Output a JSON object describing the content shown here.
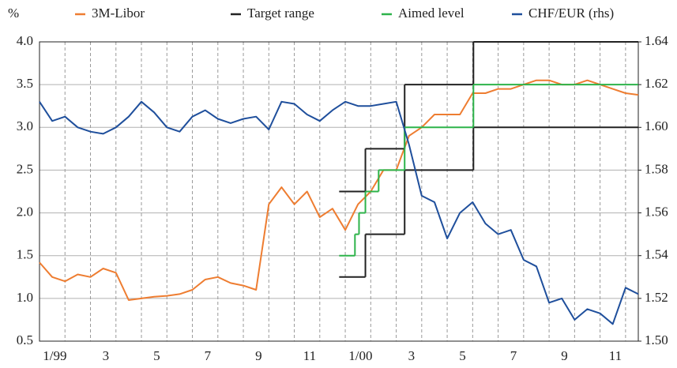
{
  "chart_data": {
    "type": "line",
    "ylabel": "%",
    "xlim": [
      0,
      23.5
    ],
    "xticks": [
      {
        "value": 0,
        "label": "1/99"
      },
      {
        "value": 2,
        "label": "3"
      },
      {
        "value": 4,
        "label": "5"
      },
      {
        "value": 6,
        "label": "7"
      },
      {
        "value": 8,
        "label": "9"
      },
      {
        "value": 10,
        "label": "11"
      },
      {
        "value": 12,
        "label": "1/00"
      },
      {
        "value": 14,
        "label": "3"
      },
      {
        "value": 16,
        "label": "5"
      },
      {
        "value": 18,
        "label": "7"
      },
      {
        "value": 20,
        "label": "9"
      },
      {
        "value": 22,
        "label": "11"
      }
    ],
    "ylim": [
      0.5,
      4.0
    ],
    "yticks": [
      {
        "value": 0.5,
        "label": "0.5"
      },
      {
        "value": 1,
        "label": "1.0"
      },
      {
        "value": 1.5,
        "label": "1.5"
      },
      {
        "value": 2,
        "label": "2.0"
      },
      {
        "value": 2.5,
        "label": "2.5"
      },
      {
        "value": 3,
        "label": "3.0"
      },
      {
        "value": 3.5,
        "label": "3.5"
      },
      {
        "value": 4,
        "label": "4.0"
      }
    ],
    "y2lim": [
      1.5,
      1.64
    ],
    "y2ticks": [
      {
        "value": 1.5,
        "label": "1.50"
      },
      {
        "value": 1.52,
        "label": "1.52"
      },
      {
        "value": 1.54,
        "label": "1.54"
      },
      {
        "value": 1.56,
        "label": "1.56"
      },
      {
        "value": 1.58,
        "label": "1.58"
      },
      {
        "value": 1.6,
        "label": "1.60"
      },
      {
        "value": 1.62,
        "label": "1.62"
      },
      {
        "value": 1.64,
        "label": "1.64"
      }
    ],
    "grid": true,
    "legend": "top",
    "x": [
      0,
      0.5,
      1,
      1.5,
      2,
      2.5,
      3,
      3.5,
      4,
      4.5,
      5,
      5.5,
      6,
      6.5,
      7,
      7.5,
      8,
      8.5,
      9,
      9.5,
      10,
      10.5,
      11,
      11.5,
      12,
      12.5,
      13,
      13.5,
      14,
      14.5,
      15,
      15.5,
      16,
      16.5,
      17,
      17.5,
      18,
      18.5,
      19,
      19.5,
      20,
      20.5,
      21,
      21.5,
      22,
      22.5,
      23,
      23.5
    ],
    "series": [
      {
        "name": "3M-Libor",
        "color": "#ee7d31",
        "values": [
          1.42,
          1.25,
          1.2,
          1.28,
          1.25,
          1.35,
          1.3,
          0.98,
          1.0,
          1.02,
          1.03,
          1.05,
          1.1,
          1.22,
          1.25,
          1.18,
          1.15,
          1.1,
          2.1,
          2.3,
          2.1,
          2.25,
          1.95,
          2.05,
          1.8,
          2.1,
          2.25,
          2.5,
          2.5,
          2.9,
          3.0,
          3.15,
          3.15,
          3.15,
          3.4,
          3.4,
          3.45,
          3.45,
          3.5,
          3.55,
          3.55,
          3.5,
          3.5,
          3.55,
          3.5,
          3.45,
          3.4,
          3.38
        ]
      },
      {
        "name": "Target range",
        "color": "#222222",
        "type": "step",
        "x": [
          11.76,
          12.79,
          14.33,
          17.03
        ],
        "values": [
          [
            1.25,
            2.25
          ],
          [
            1.75,
            2.75
          ],
          [
            2.5,
            3.5
          ],
          [
            3.0,
            4.0
          ]
        ]
      },
      {
        "name": "Aimed level",
        "color": "#2db34a",
        "type": "step",
        "x": [
          11.76,
          12.38,
          12.54,
          12.79,
          13.31,
          14.33,
          17.03
        ],
        "values": [
          1.5,
          1.75,
          2.0,
          2.25,
          2.5,
          3.0,
          3.5
        ]
      },
      {
        "name": "CHF/EUR (rhs)",
        "color": "#1f4f9c",
        "axis": "y2",
        "values": [
          1.612,
          1.603,
          1.605,
          1.6,
          1.598,
          1.597,
          1.6,
          1.605,
          1.612,
          1.607,
          1.6,
          1.598,
          1.605,
          1.608,
          1.604,
          1.602,
          1.604,
          1.605,
          1.599,
          1.612,
          1.611,
          1.606,
          1.603,
          1.608,
          1.612,
          1.61,
          1.61,
          1.611,
          1.612,
          1.592,
          1.568,
          1.565,
          1.548,
          1.56,
          1.565,
          1.555,
          1.55,
          1.552,
          1.538,
          1.535,
          1.518,
          1.52,
          1.51,
          1.515,
          1.513,
          1.508,
          1.525,
          1.522
        ]
      }
    ]
  }
}
